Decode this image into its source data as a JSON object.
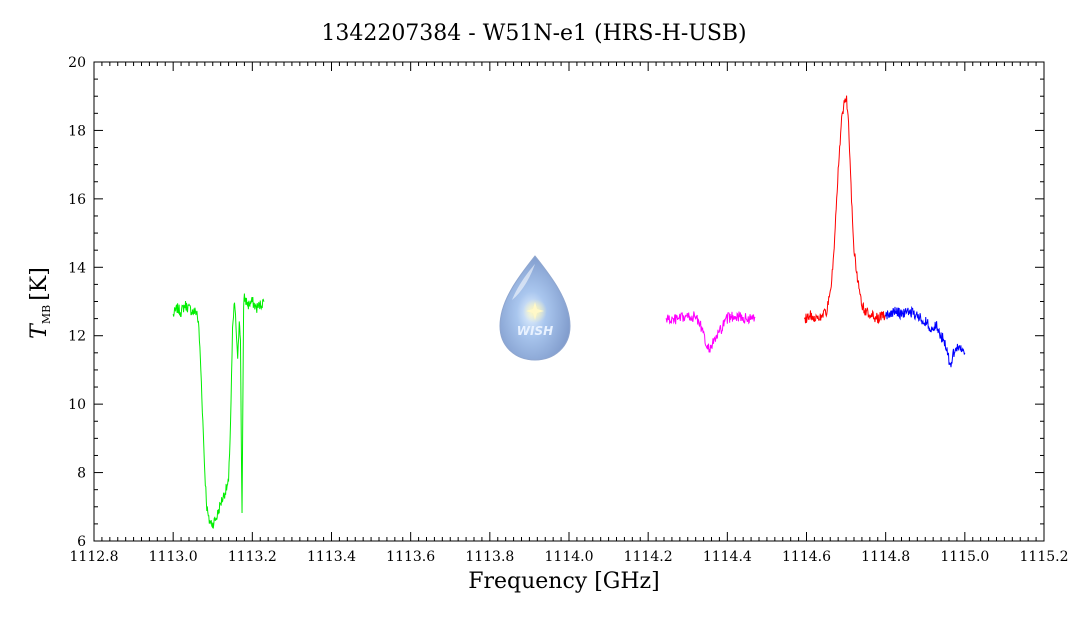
{
  "chart_data": {
    "type": "line",
    "title": "1342207384 - W51N-e1 (HRS-H-USB)",
    "xlabel": "Frequency [GHz]",
    "ylabel_main": "T",
    "ylabel_sub": "MB",
    "ylabel_unit": "[K]",
    "xlim": [
      1112.8,
      1115.2
    ],
    "ylim": [
      6,
      20
    ],
    "x_major_ticks": [
      1112.8,
      1113.0,
      1113.2,
      1113.4,
      1113.6,
      1113.8,
      1114.0,
      1114.2,
      1114.4,
      1114.6,
      1114.8,
      1115.0,
      1115.2
    ],
    "x_tick_labels": [
      "1112.8",
      "1113.0",
      "1113.2",
      "1113.4",
      "1113.6",
      "1113.8",
      "1114.0",
      "1114.2",
      "1114.4",
      "1114.6",
      "1114.8",
      "1115.0",
      "1115.2"
    ],
    "y_major_ticks": [
      6,
      8,
      10,
      12,
      14,
      16,
      18,
      20
    ],
    "y_tick_labels": [
      "6",
      "8",
      "10",
      "12",
      "14",
      "16",
      "18",
      "20"
    ],
    "logo_text": "WISH",
    "series": [
      {
        "color": "#00ee00",
        "x": [
          1113.0,
          1113.01,
          1113.02,
          1113.03,
          1113.04,
          1113.05,
          1113.06,
          1113.065,
          1113.07,
          1113.075,
          1113.08,
          1113.085,
          1113.09,
          1113.1,
          1113.11,
          1113.12,
          1113.13,
          1113.14,
          1113.145,
          1113.15,
          1113.155,
          1113.16,
          1113.163,
          1113.167,
          1113.17,
          1113.172,
          1113.174,
          1113.176,
          1113.178,
          1113.18,
          1113.19,
          1113.2,
          1113.21,
          1113.22,
          1113.23
        ],
        "y": [
          12.6,
          12.8,
          12.7,
          12.9,
          12.8,
          12.7,
          12.7,
          12.2,
          11.0,
          9.5,
          8.0,
          7.0,
          6.6,
          6.5,
          6.7,
          7.1,
          7.4,
          7.7,
          9.5,
          12.1,
          13.0,
          12.0,
          11.2,
          12.5,
          12.0,
          9.0,
          6.8,
          10.0,
          12.8,
          13.1,
          12.9,
          13.0,
          12.8,
          12.9,
          13.0
        ]
      },
      {
        "color": "#ff00ff",
        "x": [
          1114.245,
          1114.26,
          1114.28,
          1114.3,
          1114.32,
          1114.33,
          1114.34,
          1114.35,
          1114.36,
          1114.37,
          1114.38,
          1114.39,
          1114.4,
          1114.42,
          1114.44,
          1114.46,
          1114.47
        ],
        "y": [
          12.5,
          12.45,
          12.5,
          12.55,
          12.55,
          12.4,
          12.0,
          11.6,
          11.7,
          11.9,
          12.1,
          12.3,
          12.5,
          12.6,
          12.5,
          12.5,
          12.55
        ]
      },
      {
        "color": "#ff0000",
        "x": [
          1114.595,
          1114.61,
          1114.63,
          1114.65,
          1114.66,
          1114.67,
          1114.68,
          1114.69,
          1114.7,
          1114.705,
          1114.71,
          1114.72,
          1114.73,
          1114.74,
          1114.75,
          1114.76,
          1114.78,
          1114.8
        ],
        "y": [
          12.5,
          12.6,
          12.5,
          12.7,
          13.2,
          14.5,
          16.8,
          18.5,
          19.0,
          18.5,
          17.0,
          14.5,
          13.6,
          12.9,
          12.7,
          12.6,
          12.5,
          12.6
        ]
      },
      {
        "color": "#0000ff",
        "x": [
          1114.8,
          1114.82,
          1114.84,
          1114.86,
          1114.88,
          1114.9,
          1114.91,
          1114.92,
          1114.93,
          1114.94,
          1114.95,
          1114.96,
          1114.965,
          1114.97,
          1114.98,
          1114.99,
          1115.0
        ],
        "y": [
          12.6,
          12.7,
          12.65,
          12.7,
          12.6,
          12.4,
          12.3,
          12.2,
          12.3,
          12.0,
          11.8,
          11.3,
          11.0,
          11.5,
          11.6,
          11.7,
          11.5
        ]
      }
    ]
  }
}
